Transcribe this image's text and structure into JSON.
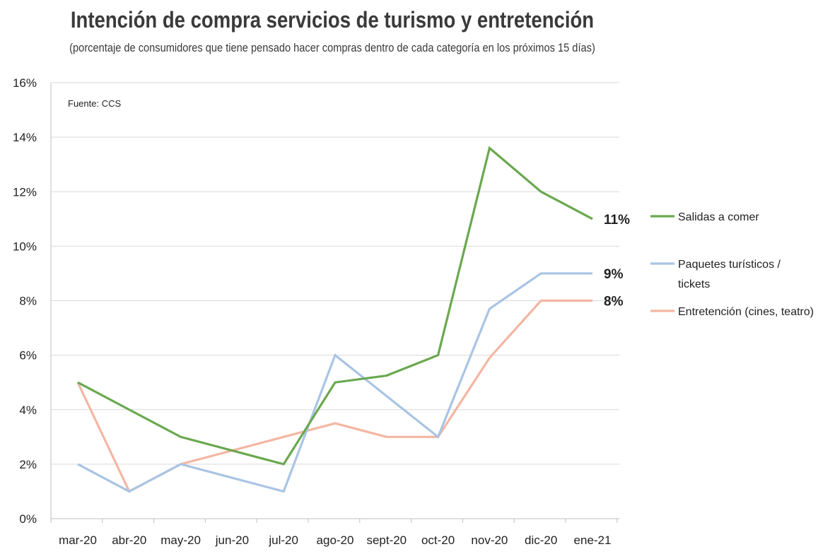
{
  "chart_data": {
    "type": "line",
    "title": "Intención de compra servicios de turismo y entretención",
    "subtitle": "(porcentaje de consumidores que tiene pensado hacer compras dentro de cada categoría en los próximos 15 días)",
    "source": "Fuente: CCS",
    "xlabel": "",
    "ylabel": "",
    "ylim": [
      0,
      16
    ],
    "yticks": [
      0,
      2,
      4,
      6,
      8,
      10,
      12,
      14,
      16
    ],
    "ytick_labels": [
      "0%",
      "2%",
      "4%",
      "6%",
      "8%",
      "10%",
      "12%",
      "14%",
      "16%"
    ],
    "categories": [
      "mar-20",
      "abr-20",
      "may-20",
      "jun-20",
      "jul-20",
      "ago-20",
      "sept-20",
      "oct-20",
      "nov-20",
      "dic-20",
      "ene-21"
    ],
    "grid": true,
    "legend_position": "right",
    "series": [
      {
        "name": "Salidas a comer",
        "legend_lines": [
          "Salidas a comer"
        ],
        "color": "#6aa84f",
        "values": [
          5,
          4,
          3,
          2.5,
          2,
          5,
          5.25,
          6,
          13.6,
          12,
          11
        ],
        "end_label": "11%"
      },
      {
        "name": "Paquetes turísticos / tickets",
        "legend_lines": [
          "Paquetes turísticos /",
          "tickets"
        ],
        "color": "#a9c4e4",
        "values": [
          2,
          1,
          2,
          1.5,
          1,
          6,
          4.5,
          3,
          7.7,
          9,
          9
        ],
        "end_label": "9%"
      },
      {
        "name": "Entretención (cines, teatro)",
        "legend_lines": [
          "Entretención (cines, teatro)"
        ],
        "color": "#f4b6a3",
        "values": [
          5,
          1,
          2,
          2.5,
          3,
          3.5,
          3,
          3,
          5.9,
          8,
          8
        ],
        "end_label": "8%"
      }
    ]
  }
}
